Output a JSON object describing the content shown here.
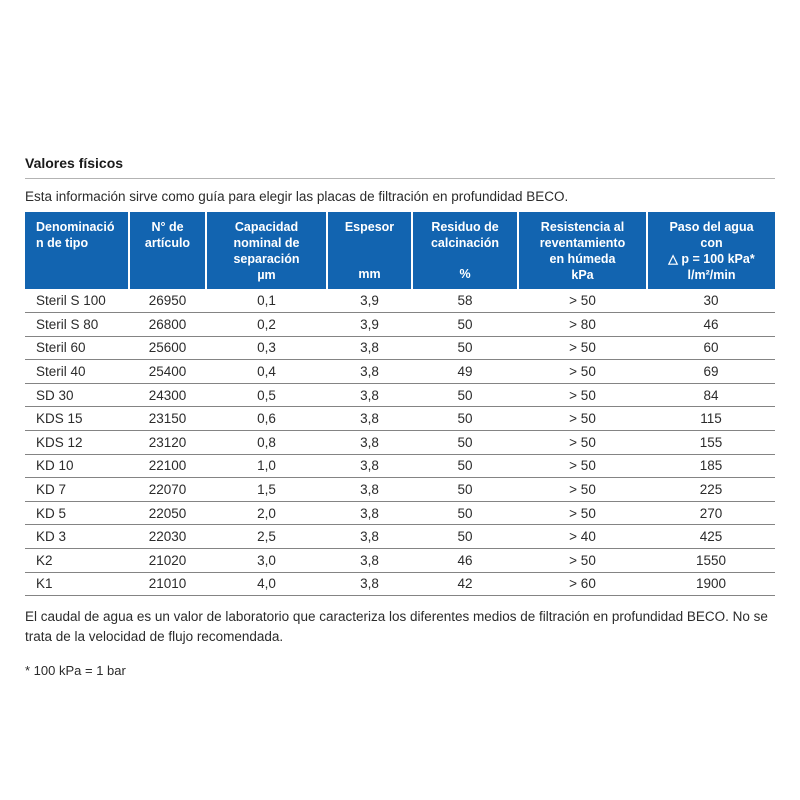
{
  "page": {
    "title": "Valores físicos",
    "intro": "Esta información sirve como guía para elegir las placas de filtración en profundidad BECO.",
    "footer_note": "El caudal de agua es un valor de laboratorio que caracteriza los diferentes medios de filtración en profundidad BECO. No se trata de la velocidad de flujo recomendada.",
    "footnote": "* 100 kPa = 1 bar"
  },
  "colors": {
    "header_bg": "#1264b0",
    "header_text": "#ffffff",
    "row_separator": "#848484",
    "title_rule": "#b3b3b3",
    "body_text": "#2b2b2b"
  },
  "table": {
    "headers": [
      {
        "title": [
          "Denominació",
          "n de tipo"
        ],
        "unit": ""
      },
      {
        "title": [
          "N° de",
          "artículo"
        ],
        "unit": ""
      },
      {
        "title": [
          "Capacidad",
          "nominal de",
          "separación"
        ],
        "unit": "µm"
      },
      {
        "title": [
          "Espesor"
        ],
        "unit": "mm"
      },
      {
        "title": [
          "Residuo de",
          "calcinación"
        ],
        "unit": "%"
      },
      {
        "title": [
          "Resistencia al",
          "reventamiento",
          "en húmeda"
        ],
        "unit": "kPa"
      },
      {
        "title": [
          "Paso del agua",
          "con",
          "△ p = 100 kPa*"
        ],
        "unit": "l/m²/min"
      }
    ],
    "rows": [
      [
        "Steril S 100",
        "26950",
        "0,1",
        "3,9",
        "58",
        "> 50",
        "30"
      ],
      [
        "Steril S 80",
        "26800",
        "0,2",
        "3,9",
        "50",
        "> 80",
        "46"
      ],
      [
        "Steril 60",
        "25600",
        "0,3",
        "3,8",
        "50",
        "> 50",
        "60"
      ],
      [
        "Steril 40",
        "25400",
        "0,4",
        "3,8",
        "49",
        "> 50",
        "69"
      ],
      [
        "SD 30",
        "24300",
        "0,5",
        "3,8",
        "50",
        "> 50",
        "84"
      ],
      [
        "KDS 15",
        "23150",
        "0,6",
        "3,8",
        "50",
        "> 50",
        "115"
      ],
      [
        "KDS 12",
        "23120",
        "0,8",
        "3,8",
        "50",
        "> 50",
        "155"
      ],
      [
        "KD 10",
        "22100",
        "1,0",
        "3,8",
        "50",
        "> 50",
        "185"
      ],
      [
        "KD 7",
        "22070",
        "1,5",
        "3,8",
        "50",
        "> 50",
        "225"
      ],
      [
        "KD 5",
        "22050",
        "2,0",
        "3,8",
        "50",
        "> 50",
        "270"
      ],
      [
        "KD 3",
        "22030",
        "2,5",
        "3,8",
        "50",
        "> 40",
        "425"
      ],
      [
        "K2",
        "21020",
        "3,0",
        "3,8",
        "46",
        "> 50",
        "1550"
      ],
      [
        "K1",
        "21010",
        "4,0",
        "3,8",
        "42",
        "> 60",
        "1900"
      ]
    ]
  }
}
